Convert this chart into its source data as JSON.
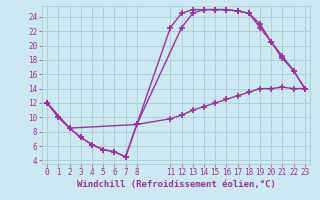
{
  "background_color": "#cce8f0",
  "grid_color": "#aaccd8",
  "line_color": "#993399",
  "marker": "+",
  "markersize": 4,
  "markeredgewidth": 1.2,
  "linewidth": 1.0,
  "xlabel": "Windchill (Refroidissement éolien,°C)",
  "xlabel_fontsize": 6.5,
  "tick_fontsize": 5.5,
  "xlim": [
    -0.5,
    23.5
  ],
  "ylim": [
    3.5,
    25.5
  ],
  "yticks": [
    4,
    6,
    8,
    10,
    12,
    14,
    16,
    18,
    20,
    22,
    24
  ],
  "xticks": [
    0,
    1,
    2,
    3,
    4,
    5,
    6,
    7,
    8,
    11,
    12,
    13,
    14,
    15,
    16,
    17,
    18,
    19,
    20,
    21,
    22,
    23
  ],
  "curve1_x": [
    0,
    1,
    2,
    3,
    4,
    5,
    6,
    7,
    8,
    12,
    13,
    14,
    15,
    16,
    17,
    18,
    19,
    20,
    21,
    22,
    23
  ],
  "curve1_y": [
    12,
    10,
    8.5,
    7.2,
    6.2,
    5.5,
    5.2,
    4.5,
    9,
    22.5,
    24.5,
    25,
    25,
    25,
    24.8,
    24.5,
    23,
    20.5,
    18.5,
    16.5,
    14
  ],
  "curve2_x": [
    0,
    1,
    2,
    3,
    4,
    5,
    6,
    7,
    8,
    11,
    12,
    13,
    14,
    15,
    16,
    17,
    18,
    19,
    20,
    21,
    22,
    23
  ],
  "curve2_y": [
    12,
    10,
    8.5,
    7.2,
    6.2,
    5.5,
    5.2,
    4.5,
    9,
    22.5,
    24.5,
    25,
    25,
    25,
    25,
    24.8,
    24.5,
    22.5,
    20.5,
    18.2,
    16.5,
    14
  ],
  "curve3_x": [
    0,
    2,
    8,
    11,
    12,
    13,
    14,
    15,
    16,
    17,
    18,
    19,
    20,
    21,
    22,
    23
  ],
  "curve3_y": [
    12,
    8.5,
    9,
    9.8,
    10.3,
    11,
    11.5,
    12,
    12.5,
    13,
    13.5,
    14,
    14,
    14.2,
    14,
    14
  ]
}
